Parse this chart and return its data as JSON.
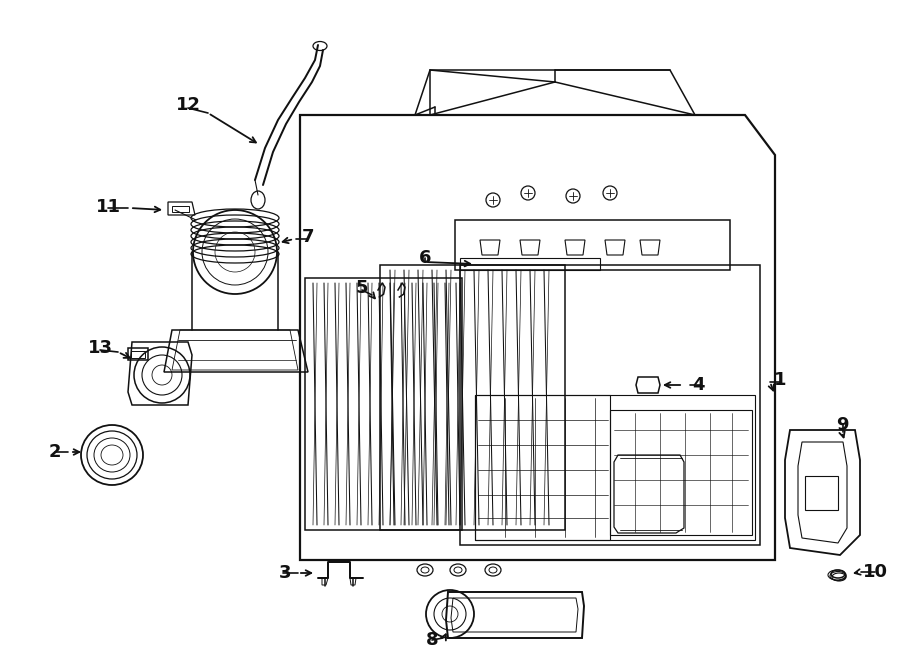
{
  "bg": "#ffffff",
  "lc": "#111111",
  "lw": 1.1,
  "fs": 13,
  "figsize": [
    9.0,
    6.61
  ],
  "dpi": 100
}
